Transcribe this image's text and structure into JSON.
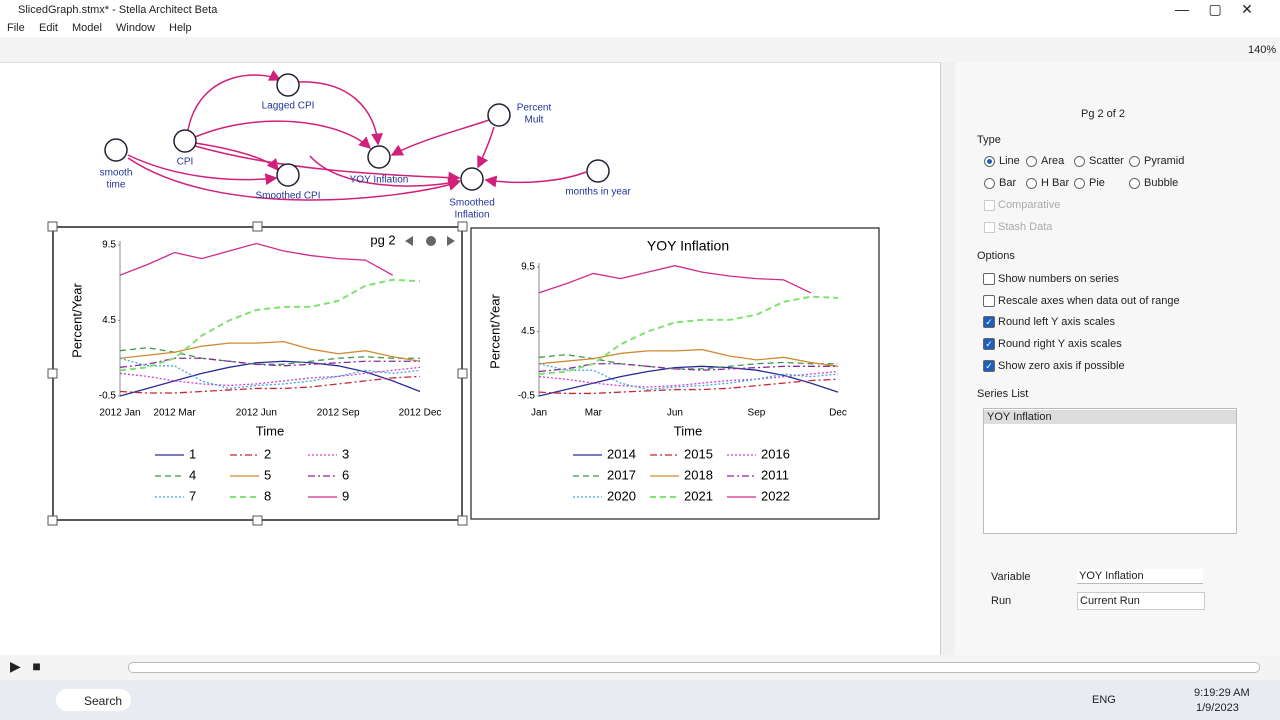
{
  "window": {
    "title": "SlicedGraph.stmx* - Stella Architect Beta",
    "zoom": "140%"
  },
  "menu": [
    "File",
    "Edit",
    "Model",
    "Window",
    "Help"
  ],
  "diagram": {
    "nodes": [
      {
        "label": [
          "Lagged CPI"
        ]
      },
      {
        "label": [
          "CPI"
        ]
      },
      {
        "label": [
          "smooth",
          "time"
        ]
      },
      {
        "label": [
          "YOY Inflation"
        ]
      },
      {
        "label": [
          "Smoothed CPI"
        ]
      },
      {
        "label": [
          "Percent",
          "Mult"
        ]
      },
      {
        "label": [
          "Smoothed",
          "Inflation"
        ]
      },
      {
        "label": [
          "months in year"
        ]
      }
    ]
  },
  "chart_data": [
    {
      "type": "line",
      "page_label": "pg 2",
      "ylabel": "Percent/Year",
      "xlabel": "Time",
      "xlim": [
        0,
        11
      ],
      "ylim": [
        -0.5,
        9.5
      ],
      "yticks": [
        -0.5,
        4.5,
        9.5
      ],
      "xticks": [
        {
          "value": 0,
          "label": "2012 Jan"
        },
        {
          "value": 2,
          "label": "2012 Mar"
        },
        {
          "value": 5,
          "label": "2012 Jun"
        },
        {
          "value": 8,
          "label": "2012 Sep"
        },
        {
          "value": 11,
          "label": "2012 Dec"
        }
      ],
      "x": [
        0,
        1,
        2,
        3,
        4,
        5,
        6,
        7,
        8,
        9,
        10,
        11
      ],
      "series": [
        {
          "name": "1",
          "color": "#2a2a9a",
          "dash": "solid",
          "values": [
            -0.5,
            0,
            0.5,
            1,
            1.4,
            1.7,
            1.8,
            1.7,
            1.5,
            1.1,
            0.5,
            -0.2
          ]
        },
        {
          "name": "2",
          "color": "#c8282e",
          "dash": "dashdot",
          "values": [
            -0.2,
            -0.3,
            -0.3,
            -0.2,
            -0.1,
            0,
            0,
            0.1,
            0.3,
            0.5,
            0.7,
            0.8
          ]
        },
        {
          "name": "3",
          "color": "#d040d0",
          "dash": "dotted",
          "values": [
            1,
            0.8,
            0.5,
            0.3,
            0.2,
            0.3,
            0.5,
            0.7,
            0.8,
            1,
            1.2,
            1.4
          ]
        },
        {
          "name": "4",
          "color": "#3a9a4a",
          "dash": "dashed",
          "values": [
            2.5,
            2.7,
            2.4,
            2,
            1.8,
            1.6,
            1.6,
            1.8,
            2,
            2.1,
            2,
            2
          ]
        },
        {
          "name": "5",
          "color": "#d08a30",
          "dash": "solid",
          "values": [
            2,
            2.2,
            2.4,
            2.8,
            3,
            3,
            3.1,
            2.6,
            2.3,
            2.5,
            2.1,
            1.8
          ]
        },
        {
          "name": "6",
          "color": "#8a2aa0",
          "dash": "dashdot",
          "values": [
            1.4,
            1.6,
            2,
            2,
            1.8,
            1.6,
            1.5,
            1.6,
            1.7,
            1.8,
            1.8,
            1.8
          ]
        },
        {
          "name": "7",
          "color": "#40a8d8",
          "dash": "dotted",
          "values": [
            2,
            1.5,
            1.5,
            0.5,
            0,
            0.2,
            0.3,
            0.5,
            0.8,
            1.2,
            1,
            1.2
          ]
        },
        {
          "name": "8",
          "color": "#80e070",
          "dash": "dashed",
          "values": [
            1.2,
            1.4,
            2,
            3.5,
            4.5,
            5.2,
            5.4,
            5.4,
            5.8,
            6.8,
            7.2,
            7.1
          ]
        },
        {
          "name": "9",
          "color": "#d02a8a",
          "dash": "solid",
          "values": [
            7.5,
            8.2,
            9,
            8.6,
            9.1,
            9.6,
            9.1,
            8.8,
            8.6,
            8.5,
            7.5,
            null
          ]
        }
      ]
    },
    {
      "type": "line",
      "title": "YOY Inflation",
      "ylabel": "Percent/Year",
      "xlabel": "Time",
      "xlim": [
        0,
        11
      ],
      "ylim": [
        -0.5,
        9.5
      ],
      "yticks": [
        -0.5,
        4.5,
        9.5
      ],
      "xticks": [
        {
          "value": 0,
          "label": "Jan"
        },
        {
          "value": 2,
          "label": "Mar"
        },
        {
          "value": 5,
          "label": "Jun"
        },
        {
          "value": 8,
          "label": "Sep"
        },
        {
          "value": 11,
          "label": "Dec"
        }
      ],
      "x": [
        0,
        1,
        2,
        3,
        4,
        5,
        6,
        7,
        8,
        9,
        10,
        11
      ],
      "series": [
        {
          "name": "2014",
          "color": "#2a2a9a",
          "dash": "solid",
          "values": [
            -0.5,
            0,
            0.5,
            1,
            1.4,
            1.7,
            1.8,
            1.7,
            1.5,
            1.1,
            0.5,
            -0.2
          ]
        },
        {
          "name": "2015",
          "color": "#c8282e",
          "dash": "dashdot",
          "values": [
            -0.2,
            -0.3,
            -0.3,
            -0.2,
            -0.1,
            0,
            0,
            0.1,
            0.3,
            0.5,
            0.7,
            0.8
          ]
        },
        {
          "name": "2016",
          "color": "#d040d0",
          "dash": "dotted",
          "values": [
            1,
            0.8,
            0.5,
            0.3,
            0.2,
            0.3,
            0.5,
            0.7,
            0.8,
            1,
            1.2,
            1.4
          ]
        },
        {
          "name": "2017",
          "color": "#3a9a4a",
          "dash": "dashed",
          "values": [
            2.5,
            2.7,
            2.4,
            2,
            1.8,
            1.6,
            1.6,
            1.8,
            2,
            2.1,
            2,
            2
          ]
        },
        {
          "name": "2018",
          "color": "#d08a30",
          "dash": "solid",
          "values": [
            2,
            2.2,
            2.4,
            2.8,
            3,
            3,
            3.1,
            2.6,
            2.3,
            2.5,
            2.1,
            1.8
          ]
        },
        {
          "name": "2011",
          "color": "#8a2aa0",
          "dash": "dashdot",
          "values": [
            1.4,
            1.6,
            2,
            2,
            1.8,
            1.6,
            1.5,
            1.6,
            1.7,
            1.8,
            1.8,
            1.8
          ]
        },
        {
          "name": "2020",
          "color": "#40a8d8",
          "dash": "dotted",
          "values": [
            2,
            1.5,
            1.5,
            0.5,
            0,
            0.2,
            0.3,
            0.5,
            0.8,
            1.2,
            1,
            1.2
          ]
        },
        {
          "name": "2021",
          "color": "#80e070",
          "dash": "dashed",
          "values": [
            1.2,
            1.4,
            2,
            3.5,
            4.5,
            5.2,
            5.4,
            5.4,
            5.8,
            6.8,
            7.2,
            7.1
          ]
        },
        {
          "name": "2022",
          "color": "#d02a8a",
          "dash": "solid",
          "values": [
            7.5,
            8.2,
            9,
            8.6,
            9.1,
            9.6,
            9.1,
            8.8,
            8.6,
            8.5,
            7.5,
            null
          ]
        }
      ]
    }
  ],
  "panel": {
    "page": "Pg 2 of 2",
    "type_heading": "Type",
    "types": [
      {
        "label": "Line",
        "selected": true
      },
      {
        "label": "Area",
        "selected": false
      },
      {
        "label": "Scatter",
        "selected": false
      },
      {
        "label": "Pyramid",
        "selected": false
      },
      {
        "label": "Bar",
        "selected": false
      },
      {
        "label": "H Bar",
        "selected": false
      },
      {
        "label": "Pie",
        "selected": false
      },
      {
        "label": "Bubble",
        "selected": false
      }
    ],
    "extras": [
      "Comparative",
      "Stash Data"
    ],
    "options_heading": "Options",
    "options": [
      {
        "label": "Show numbers on series",
        "checked": false
      },
      {
        "label": "Rescale axes when data out of range",
        "checked": false
      },
      {
        "label": "Round left Y axis scales",
        "checked": true
      },
      {
        "label": "Round right Y axis scales",
        "checked": true
      },
      {
        "label": "Show zero axis if possible",
        "checked": true
      }
    ],
    "series_heading": "Series List",
    "series_list": [
      "YOY Inflation"
    ],
    "variable_label": "Variable",
    "variable": "YOY Inflation",
    "run_label": "Run",
    "run": "Current Run"
  },
  "taskbar": {
    "search": "Search",
    "lang": "ENG",
    "time": "9:19:29 AM",
    "date": "1/9/2023"
  }
}
